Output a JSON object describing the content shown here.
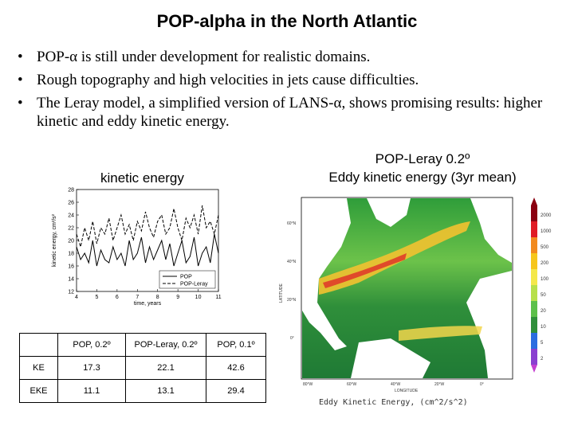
{
  "title": "POP-alpha in the North Atlantic",
  "bullets": [
    "POP-α is still under development for realistic domains.",
    "Rough topography and high velocities in jets cause difficulties.",
    "The Leray model, a simplified version of LANS-α, shows promising results: higher kinetic and eddy kinetic energy."
  ],
  "bullet_glyph": "•",
  "ke_heading": "kinetic energy",
  "map_heading_1": "POP-Leray 0.2º",
  "map_heading_2": "Eddy kinetic energy (3yr mean)",
  "map": {
    "lat_ticks": [
      "60°N",
      "40°N",
      "20°N",
      "0°"
    ],
    "lon_ticks": [
      "80°W",
      "60°W",
      "40°W",
      "20°W",
      "0°"
    ],
    "lat_label": "LATITUDE",
    "lon_label": "LONGITUDE",
    "colorbar_ticks": [
      "2000",
      "1000",
      "500",
      "200",
      "100",
      "50",
      "20",
      "10",
      "5",
      "2"
    ],
    "caption": "Eddy Kinetic Energy, (cm^2/s^2)"
  },
  "table": {
    "headers": [
      "",
      "POP, 0.2º",
      "POP-Leray, 0.2º",
      "POP, 0.1º"
    ],
    "rows": [
      {
        "label": "KE",
        "values": [
          "17.3",
          "22.1",
          "42.6"
        ]
      },
      {
        "label": "EKE",
        "values": [
          "11.1",
          "13.1",
          "29.4"
        ]
      }
    ]
  },
  "chart_data": {
    "type": "line",
    "title": "kinetic energy",
    "xlabel": "time, years",
    "ylabel": "kinetic energy, cm²/s²",
    "xlim": [
      4,
      11
    ],
    "ylim": [
      12,
      28
    ],
    "xticks": [
      "4",
      "5",
      "6",
      "7",
      "8",
      "9",
      "10",
      "11"
    ],
    "yticks": [
      "12",
      "14",
      "16",
      "18",
      "20",
      "22",
      "24",
      "26",
      "28"
    ],
    "legend_position": "bottom-right",
    "series": [
      {
        "name": "POP",
        "dash": "solid",
        "x": [
          4.0,
          4.2,
          4.4,
          4.6,
          4.8,
          5.0,
          5.2,
          5.4,
          5.6,
          5.8,
          6.0,
          6.2,
          6.4,
          6.6,
          6.8,
          7.0,
          7.2,
          7.4,
          7.6,
          7.8,
          8.0,
          8.2,
          8.4,
          8.6,
          8.8,
          9.0,
          9.2,
          9.4,
          9.6,
          9.8,
          10.0,
          10.2,
          10.4,
          10.6,
          10.8,
          11.0
        ],
        "y": [
          19,
          17,
          18,
          16.5,
          20,
          16,
          18.5,
          17,
          16.5,
          19,
          17,
          18,
          16,
          20,
          17,
          18,
          20.5,
          16.5,
          19,
          17,
          18.5,
          20,
          17,
          19.5,
          16,
          18,
          20,
          16.5,
          17.5,
          20.5,
          16,
          18,
          19,
          16.5,
          21,
          18
        ]
      },
      {
        "name": "POP-Leray",
        "dash": "dashed",
        "x": [
          4.0,
          4.2,
          4.4,
          4.6,
          4.8,
          5.0,
          5.2,
          5.4,
          5.6,
          5.8,
          6.0,
          6.2,
          6.4,
          6.6,
          6.8,
          7.0,
          7.2,
          7.4,
          7.6,
          7.8,
          8.0,
          8.2,
          8.4,
          8.6,
          8.8,
          9.0,
          9.2,
          9.4,
          9.6,
          9.8,
          10.0,
          10.2,
          10.4,
          10.6,
          10.8,
          11.0
        ],
        "y": [
          21,
          19,
          22,
          20,
          23,
          19.5,
          22,
          21,
          23.5,
          20,
          22,
          24,
          21,
          22.5,
          20,
          23,
          21.5,
          24.5,
          22,
          20.5,
          23,
          24,
          21,
          22,
          25,
          22,
          20,
          23.5,
          22,
          24,
          21,
          25.5,
          22,
          23,
          21,
          24
        ]
      }
    ]
  }
}
